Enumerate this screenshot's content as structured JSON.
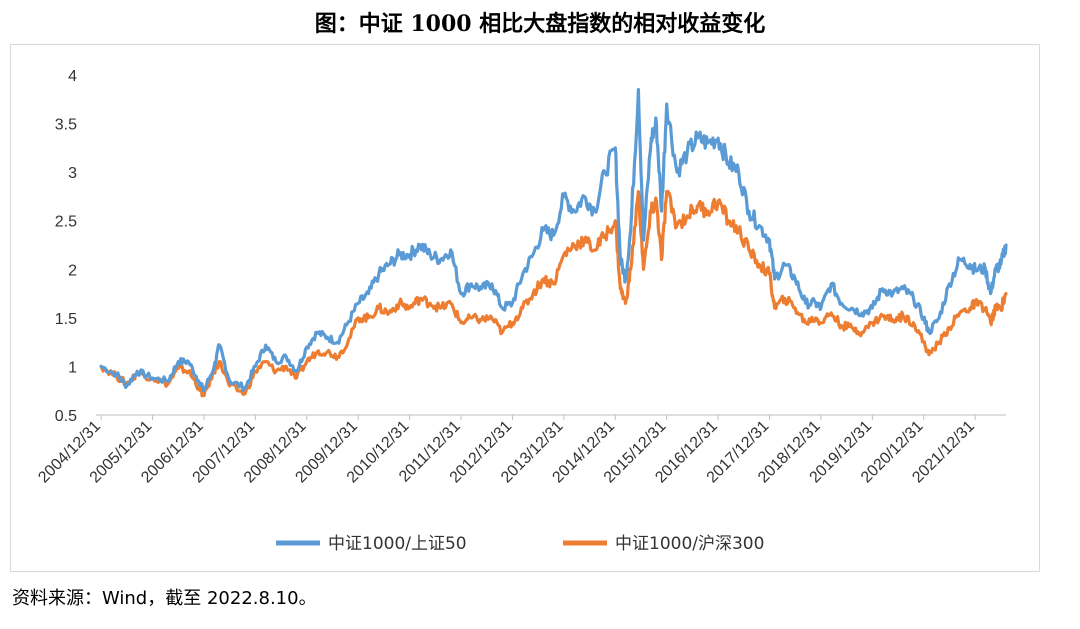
{
  "title": "图：中证 1000 相比大盘指数的相对收益变化",
  "source_note": "资料来源：Wind，截至 2022.8.10。",
  "chart_data": {
    "type": "line",
    "ylim": [
      0.5,
      4
    ],
    "yticks": [
      "0.5",
      "1",
      "1.5",
      "2",
      "2.5",
      "3",
      "3.5",
      "4"
    ],
    "xticks": [
      "2004/12/31",
      "2005/12/31",
      "2006/12/31",
      "2007/12/31",
      "2008/12/31",
      "2009/12/31",
      "2010/12/31",
      "2011/12/31",
      "2012/12/31",
      "2013/12/31",
      "2014/12/31",
      "2015/12/31",
      "2016/12/31",
      "2017/12/31",
      "2018/12/31",
      "2019/12/31",
      "2020/12/31",
      "2021/12/31"
    ],
    "x_range": [
      2004.9,
      2022.6
    ],
    "legend_position": "bottom",
    "series": [
      {
        "name": "中证1000/上证50",
        "color": "#5b9bd5",
        "points": [
          [
            2005.0,
            1.0
          ],
          [
            2005.3,
            0.92
          ],
          [
            2005.5,
            0.8
          ],
          [
            2005.7,
            0.95
          ],
          [
            2006.0,
            0.88
          ],
          [
            2006.3,
            0.85
          ],
          [
            2006.5,
            1.05
          ],
          [
            2006.7,
            1.05
          ],
          [
            2006.9,
            0.85
          ],
          [
            2007.0,
            0.75
          ],
          [
            2007.2,
            1.0
          ],
          [
            2007.3,
            1.22
          ],
          [
            2007.5,
            0.85
          ],
          [
            2007.8,
            0.78
          ],
          [
            2008.0,
            1.0
          ],
          [
            2008.2,
            1.22
          ],
          [
            2008.4,
            1.05
          ],
          [
            2008.6,
            1.1
          ],
          [
            2008.8,
            0.95
          ],
          [
            2009.0,
            1.2
          ],
          [
            2009.2,
            1.35
          ],
          [
            2009.4,
            1.3
          ],
          [
            2009.6,
            1.25
          ],
          [
            2009.8,
            1.45
          ],
          [
            2010.0,
            1.65
          ],
          [
            2010.2,
            1.75
          ],
          [
            2010.4,
            1.95
          ],
          [
            2010.6,
            2.05
          ],
          [
            2010.8,
            2.15
          ],
          [
            2011.0,
            2.15
          ],
          [
            2011.2,
            2.25
          ],
          [
            2011.4,
            2.15
          ],
          [
            2011.6,
            2.1
          ],
          [
            2011.8,
            2.2
          ],
          [
            2012.0,
            1.75
          ],
          [
            2012.2,
            1.85
          ],
          [
            2012.4,
            1.8
          ],
          [
            2012.6,
            1.85
          ],
          [
            2012.8,
            1.6
          ],
          [
            2013.0,
            1.65
          ],
          [
            2013.2,
            1.95
          ],
          [
            2013.4,
            2.15
          ],
          [
            2013.6,
            2.4
          ],
          [
            2013.8,
            2.35
          ],
          [
            2014.0,
            2.75
          ],
          [
            2014.2,
            2.6
          ],
          [
            2014.4,
            2.75
          ],
          [
            2014.6,
            2.6
          ],
          [
            2014.8,
            3.0
          ],
          [
            2015.0,
            3.25
          ],
          [
            2015.1,
            2.1
          ],
          [
            2015.2,
            1.9
          ],
          [
            2015.3,
            2.4
          ],
          [
            2015.45,
            3.85
          ],
          [
            2015.55,
            2.3
          ],
          [
            2015.7,
            3.35
          ],
          [
            2015.8,
            3.5
          ],
          [
            2015.9,
            2.6
          ],
          [
            2016.0,
            3.7
          ],
          [
            2016.2,
            3.0
          ],
          [
            2016.4,
            3.2
          ],
          [
            2016.6,
            3.35
          ],
          [
            2016.8,
            3.3
          ],
          [
            2017.0,
            3.35
          ],
          [
            2017.2,
            3.1
          ],
          [
            2017.4,
            3.0
          ],
          [
            2017.6,
            2.6
          ],
          [
            2017.8,
            2.45
          ],
          [
            2018.0,
            2.3
          ],
          [
            2018.1,
            1.9
          ],
          [
            2018.3,
            2.05
          ],
          [
            2018.5,
            1.9
          ],
          [
            2018.7,
            1.65
          ],
          [
            2018.9,
            1.65
          ],
          [
            2019.0,
            1.6
          ],
          [
            2019.2,
            1.85
          ],
          [
            2019.4,
            1.65
          ],
          [
            2019.6,
            1.6
          ],
          [
            2019.8,
            1.55
          ],
          [
            2020.0,
            1.6
          ],
          [
            2020.2,
            1.8
          ],
          [
            2020.4,
            1.75
          ],
          [
            2020.6,
            1.8
          ],
          [
            2020.8,
            1.7
          ],
          [
            2021.0,
            1.5
          ],
          [
            2021.1,
            1.35
          ],
          [
            2021.3,
            1.5
          ],
          [
            2021.5,
            1.85
          ],
          [
            2021.7,
            2.1
          ],
          [
            2021.9,
            2.05
          ],
          [
            2022.0,
            2.0
          ],
          [
            2022.2,
            2.0
          ],
          [
            2022.3,
            1.75
          ],
          [
            2022.4,
            2.0
          ],
          [
            2022.5,
            2.05
          ],
          [
            2022.6,
            2.25
          ]
        ]
      },
      {
        "name": "中证1000/沪深300",
        "color": "#ed7d31",
        "points": [
          [
            2005.0,
            1.0
          ],
          [
            2005.3,
            0.9
          ],
          [
            2005.5,
            0.82
          ],
          [
            2005.7,
            0.93
          ],
          [
            2006.0,
            0.88
          ],
          [
            2006.3,
            0.82
          ],
          [
            2006.5,
            0.98
          ],
          [
            2006.7,
            0.95
          ],
          [
            2006.9,
            0.78
          ],
          [
            2007.0,
            0.7
          ],
          [
            2007.2,
            0.95
          ],
          [
            2007.3,
            1.05
          ],
          [
            2007.5,
            0.8
          ],
          [
            2007.8,
            0.72
          ],
          [
            2008.0,
            0.95
          ],
          [
            2008.2,
            1.05
          ],
          [
            2008.4,
            0.95
          ],
          [
            2008.6,
            1.0
          ],
          [
            2008.8,
            0.88
          ],
          [
            2009.0,
            1.05
          ],
          [
            2009.2,
            1.15
          ],
          [
            2009.4,
            1.15
          ],
          [
            2009.6,
            1.1
          ],
          [
            2009.8,
            1.25
          ],
          [
            2010.0,
            1.5
          ],
          [
            2010.2,
            1.5
          ],
          [
            2010.4,
            1.6
          ],
          [
            2010.6,
            1.55
          ],
          [
            2010.8,
            1.65
          ],
          [
            2011.0,
            1.6
          ],
          [
            2011.2,
            1.7
          ],
          [
            2011.4,
            1.65
          ],
          [
            2011.6,
            1.6
          ],
          [
            2011.8,
            1.65
          ],
          [
            2012.0,
            1.45
          ],
          [
            2012.2,
            1.5
          ],
          [
            2012.4,
            1.48
          ],
          [
            2012.6,
            1.5
          ],
          [
            2012.8,
            1.35
          ],
          [
            2013.0,
            1.45
          ],
          [
            2013.2,
            1.6
          ],
          [
            2013.4,
            1.75
          ],
          [
            2013.6,
            1.9
          ],
          [
            2013.8,
            1.85
          ],
          [
            2014.0,
            2.15
          ],
          [
            2014.2,
            2.25
          ],
          [
            2014.4,
            2.3
          ],
          [
            2014.6,
            2.2
          ],
          [
            2014.8,
            2.35
          ],
          [
            2015.0,
            2.5
          ],
          [
            2015.1,
            1.8
          ],
          [
            2015.2,
            1.65
          ],
          [
            2015.3,
            2.0
          ],
          [
            2015.45,
            2.8
          ],
          [
            2015.55,
            2.0
          ],
          [
            2015.7,
            2.6
          ],
          [
            2015.8,
            2.7
          ],
          [
            2015.9,
            2.1
          ],
          [
            2016.0,
            2.8
          ],
          [
            2016.2,
            2.45
          ],
          [
            2016.4,
            2.55
          ],
          [
            2016.6,
            2.65
          ],
          [
            2016.8,
            2.6
          ],
          [
            2017.0,
            2.7
          ],
          [
            2017.2,
            2.5
          ],
          [
            2017.4,
            2.4
          ],
          [
            2017.6,
            2.2
          ],
          [
            2017.8,
            2.05
          ],
          [
            2018.0,
            1.95
          ],
          [
            2018.1,
            1.6
          ],
          [
            2018.3,
            1.7
          ],
          [
            2018.5,
            1.6
          ],
          [
            2018.7,
            1.45
          ],
          [
            2018.9,
            1.5
          ],
          [
            2019.0,
            1.45
          ],
          [
            2019.2,
            1.55
          ],
          [
            2019.4,
            1.42
          ],
          [
            2019.6,
            1.4
          ],
          [
            2019.8,
            1.35
          ],
          [
            2020.0,
            1.45
          ],
          [
            2020.2,
            1.52
          ],
          [
            2020.4,
            1.48
          ],
          [
            2020.6,
            1.52
          ],
          [
            2020.8,
            1.45
          ],
          [
            2021.0,
            1.25
          ],
          [
            2021.1,
            1.12
          ],
          [
            2021.3,
            1.25
          ],
          [
            2021.5,
            1.4
          ],
          [
            2021.7,
            1.55
          ],
          [
            2021.9,
            1.6
          ],
          [
            2022.0,
            1.65
          ],
          [
            2022.2,
            1.6
          ],
          [
            2022.3,
            1.45
          ],
          [
            2022.4,
            1.6
          ],
          [
            2022.5,
            1.6
          ],
          [
            2022.6,
            1.75
          ]
        ]
      }
    ]
  }
}
